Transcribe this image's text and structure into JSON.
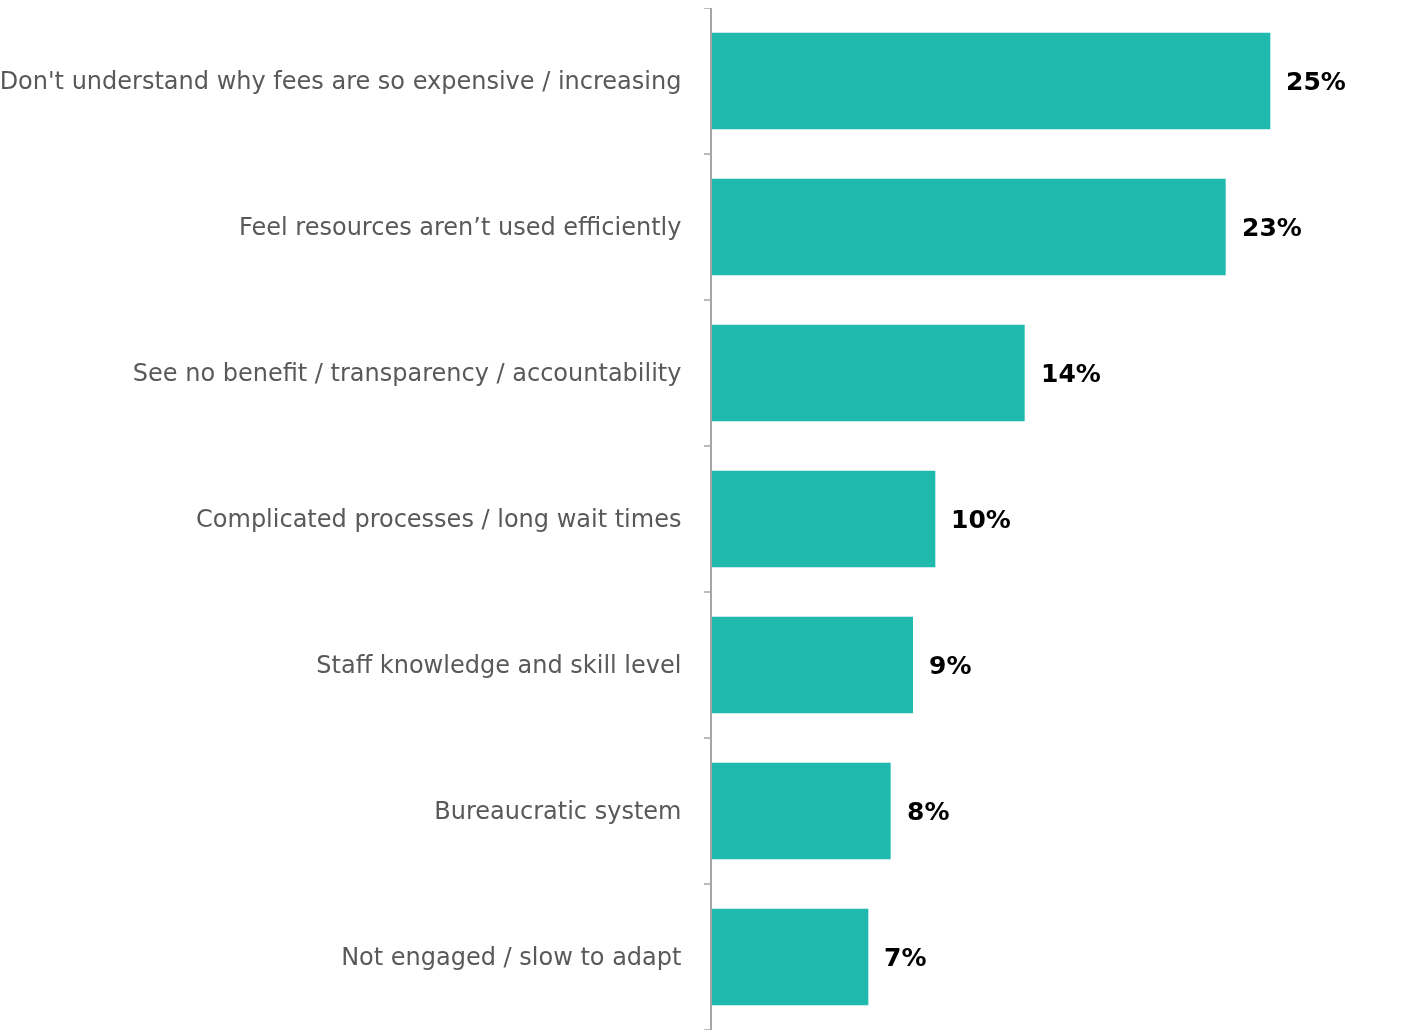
{
  "chart_data": {
    "type": "bar",
    "orientation": "horizontal",
    "categories": [
      "Don't understand why fees are so expensive / increasing",
      "Feel resources aren’t used efficiently",
      "See no benefit / transparency / accountability",
      "Complicated processes / long wait times",
      "Staff knowledge and skill level",
      "Bureaucratic system",
      "Not engaged / slow to adapt"
    ],
    "values": [
      25,
      23,
      14,
      10,
      9,
      8,
      7
    ],
    "value_labels": [
      "25%",
      "23%",
      "14%",
      "10%",
      "9%",
      "8%",
      "7%"
    ],
    "color": "#20b9ae",
    "grid": false,
    "tick_labels": "y"
  }
}
